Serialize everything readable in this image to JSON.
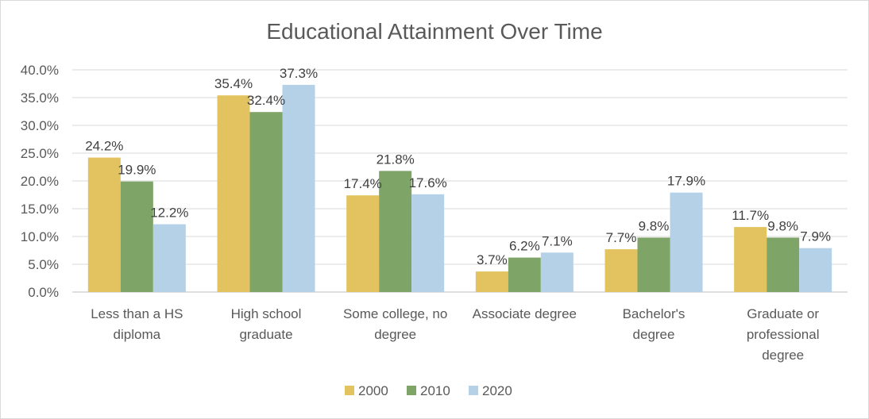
{
  "chart_data": {
    "type": "bar",
    "title": "Educational Attainment Over Time",
    "categories": [
      [
        "Less than a HS",
        "diploma"
      ],
      [
        "High school",
        "graduate"
      ],
      [
        "Some college, no",
        "degree"
      ],
      [
        "Associate degree"
      ],
      [
        "Bachelor's",
        "degree"
      ],
      [
        "Graduate or",
        "professional",
        "degree"
      ]
    ],
    "series": [
      {
        "name": "2000",
        "color": "#E2C35F",
        "values": [
          24.2,
          35.4,
          17.4,
          3.7,
          7.7,
          11.7
        ],
        "labels": [
          "24.2%",
          "35.4%",
          "17.4%",
          "3.7%",
          "7.7%",
          "11.7%"
        ]
      },
      {
        "name": "2010",
        "color": "#7FA468",
        "values": [
          19.9,
          32.4,
          21.8,
          6.2,
          9.8,
          9.8
        ],
        "labels": [
          "19.9%",
          "32.4%",
          "21.8%",
          "6.2%",
          "9.8%",
          "9.8%"
        ]
      },
      {
        "name": "2020",
        "color": "#B5D1E8",
        "values": [
          12.2,
          37.3,
          17.6,
          7.1,
          17.9,
          7.9
        ],
        "labels": [
          "12.2%",
          "37.3%",
          "17.6%",
          "7.1%",
          "17.9%",
          "7.9%"
        ]
      }
    ],
    "ylim": [
      0,
      40
    ],
    "yticks": [
      {
        "value": 0,
        "label": "0.0%"
      },
      {
        "value": 5,
        "label": "5.0%"
      },
      {
        "value": 10,
        "label": "10.0%"
      },
      {
        "value": 15,
        "label": "15.0%"
      },
      {
        "value": 20,
        "label": "20.0%"
      },
      {
        "value": 25,
        "label": "25.0%"
      },
      {
        "value": 30,
        "label": "30.0%"
      },
      {
        "value": 35,
        "label": "35.0%"
      },
      {
        "value": 40,
        "label": "40.0%"
      }
    ],
    "grid": true,
    "legend": "bottom"
  }
}
